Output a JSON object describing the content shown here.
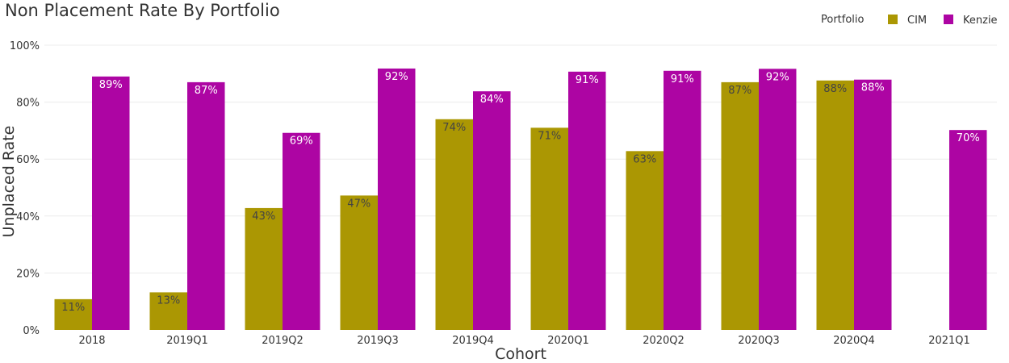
{
  "chart_data": {
    "type": "bar",
    "title": "Non Placement Rate By Portfolio",
    "xlabel": "Cohort",
    "ylabel": "Unplaced Rate",
    "ylim": [
      0,
      100
    ],
    "yticks": [
      {
        "value": 0,
        "label": "0%"
      },
      {
        "value": 20,
        "label": "20%"
      },
      {
        "value": 40,
        "label": "40%"
      },
      {
        "value": 60,
        "label": "60%"
      },
      {
        "value": 80,
        "label": "80%"
      },
      {
        "value": 100,
        "label": "100%"
      }
    ],
    "grid": true,
    "legend": {
      "title": "Portfolio",
      "position": "top-right"
    },
    "categories": [
      "2018",
      "2019Q1",
      "2019Q2",
      "2019Q3",
      "2019Q4",
      "2020Q1",
      "2020Q2",
      "2020Q3",
      "2020Q4",
      "2021Q1"
    ],
    "series": [
      {
        "name": "CIM",
        "color": "#ab9703",
        "label_color": "#444444",
        "values": [
          10.8,
          13.2,
          42.8,
          47.2,
          74.0,
          71.0,
          62.8,
          87.0,
          87.6,
          null
        ],
        "labels": [
          "11%",
          "13%",
          "43%",
          "47%",
          "74%",
          "71%",
          "63%",
          "87%",
          "88%",
          ""
        ]
      },
      {
        "name": "Kenzie",
        "color": "#ad05a3",
        "label_color": "#ffffff",
        "values": [
          89.0,
          87.0,
          69.2,
          91.8,
          83.8,
          90.7,
          91.0,
          91.7,
          87.9,
          70.2
        ],
        "labels": [
          "89%",
          "87%",
          "69%",
          "92%",
          "84%",
          "91%",
          "91%",
          "92%",
          "88%",
          "70%"
        ]
      }
    ]
  }
}
